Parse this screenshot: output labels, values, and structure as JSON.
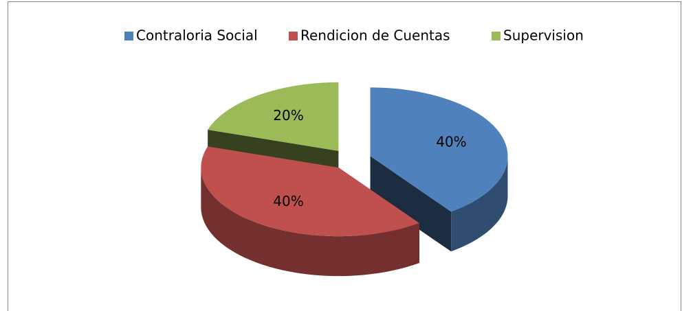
{
  "chart_data": {
    "type": "pie",
    "categories": [
      "Contraloria Social",
      "Rendicion de Cuentas",
      "Supervision"
    ],
    "values": [
      40,
      40,
      20
    ],
    "value_labels": [
      "40%",
      "40%",
      "20%"
    ],
    "colors": [
      "#4f81bd",
      "#c0504d",
      "#9bbb59"
    ],
    "legend": "top"
  }
}
